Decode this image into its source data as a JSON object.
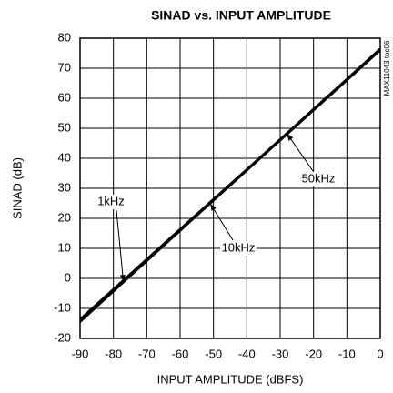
{
  "chart_data": {
    "type": "line",
    "title": "SINAD vs. INPUT AMPLITUDE",
    "xlabel": "INPUT AMPLITUDE (dBFS)",
    "ylabel": "SINAD (dB)",
    "figure_id": "MAX11043 toc06",
    "x": [
      -90,
      -80,
      -70,
      -60,
      -50,
      -40,
      -30,
      -20,
      -10,
      0
    ],
    "series": [
      {
        "name": "1kHz",
        "color": "#000000",
        "values": [
          -14.5,
          -4.3,
          5.8,
          15.9,
          26,
          36,
          46,
          56.1,
          66.1,
          76.2
        ]
      },
      {
        "name": "10kHz",
        "color": "#000000",
        "values": [
          -14,
          -4,
          6,
          16,
          26,
          36,
          46,
          56,
          66,
          76
        ]
      },
      {
        "name": "50kHz",
        "color": "#000000",
        "values": [
          -13.6,
          -3.6,
          6.4,
          16.4,
          26.4,
          36.3,
          46.3,
          56.4,
          66.4,
          76.5
        ]
      }
    ],
    "xlim": [
      -90,
      0
    ],
    "ylim": [
      -20,
      80
    ],
    "xticks": [
      -90,
      -80,
      -70,
      -60,
      -50,
      -40,
      -30,
      -20,
      -10,
      0
    ],
    "yticks": [
      -20,
      -10,
      0,
      10,
      20,
      30,
      40,
      50,
      60,
      70,
      80
    ],
    "grid": true
  }
}
